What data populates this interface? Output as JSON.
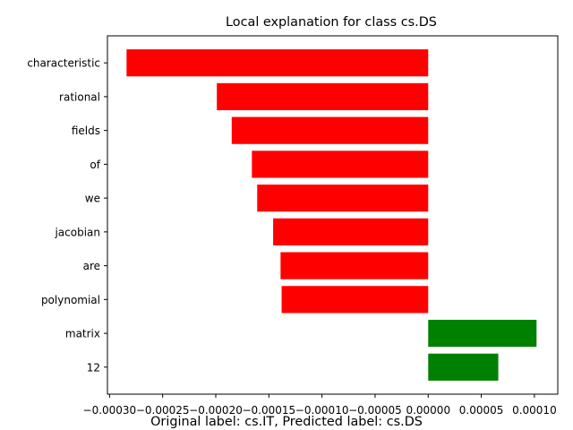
{
  "chart_data": {
    "type": "bar",
    "orientation": "horizontal",
    "title": "Local explanation for class cs.DS",
    "xlabel": "",
    "ylabel": "",
    "categories": [
      "characteristic",
      "rational",
      "fields",
      "of",
      "we",
      "jacobian",
      "are",
      "polynomial",
      "matrix",
      "12"
    ],
    "values": [
      -0.000284,
      -0.000199,
      -0.000185,
      -0.000166,
      -0.000161,
      -0.000146,
      -0.000139,
      -0.000138,
      0.000102,
      6.6e-05
    ],
    "xlim": [
      -0.000302,
      0.000122
    ],
    "x_ticks": [
      -0.0003,
      -0.00025,
      -0.0002,
      -0.00015,
      -0.0001,
      -5e-05,
      0.0,
      5e-05,
      0.0001
    ],
    "x_tick_labels": [
      "−0.00030",
      "−0.00025",
      "−0.00020",
      "−0.00015",
      "−0.00010",
      "−0.00005",
      "0.00000",
      "0.00005",
      "0.00010"
    ],
    "colors": {
      "negative": "#ff0000",
      "positive": "#008000"
    },
    "grid": false,
    "legend": "none"
  },
  "caption": "Original label: cs.IT, Predicted label: cs.DS"
}
